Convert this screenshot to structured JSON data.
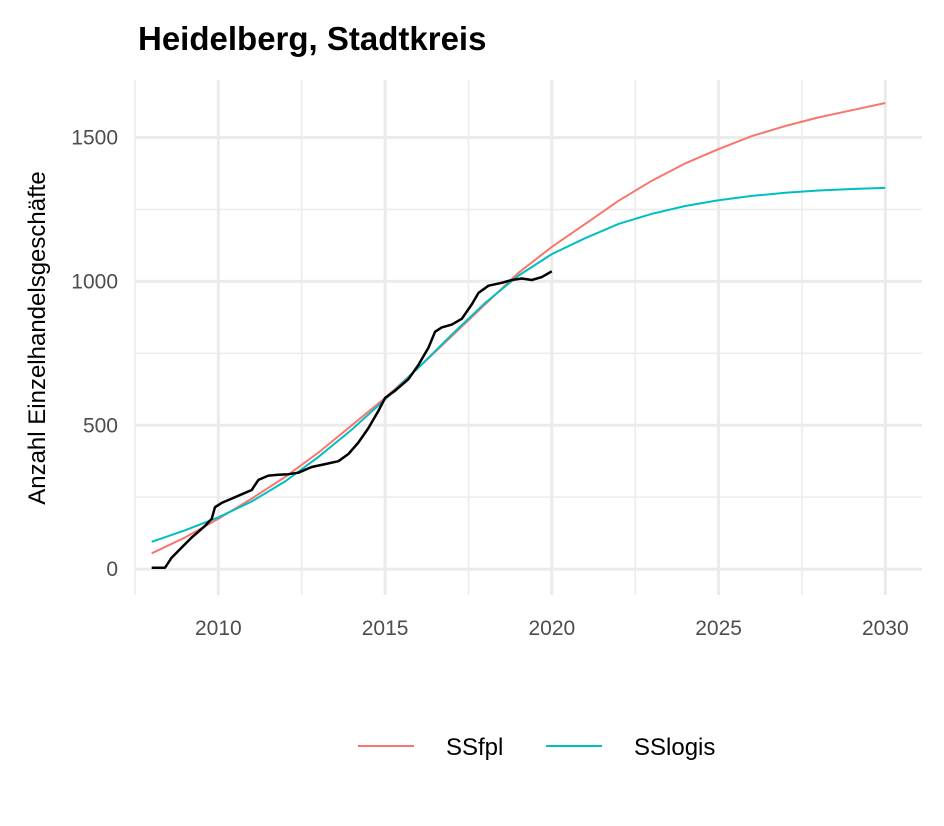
{
  "chart_data": {
    "type": "line",
    "title": "Heidelberg, Stadtkreis",
    "xlabel": "",
    "ylabel": "Anzahl Einzelhandelsgeschäfte",
    "xlim": [
      2007.5,
      2031.1
    ],
    "ylim": [
      -90,
      1700
    ],
    "xticks": [
      2010,
      2015,
      2020,
      2025,
      2030
    ],
    "yticks": [
      0,
      500,
      1000,
      1500
    ],
    "x_tick_labels": [
      "2010",
      "2015",
      "2020",
      "2025",
      "2030"
    ],
    "y_tick_labels": [
      "0",
      "500",
      "1000",
      "1500"
    ],
    "grid": true,
    "legend_position": "bottom",
    "observed": {
      "color": "#000000",
      "points": [
        [
          2008.0,
          5
        ],
        [
          2008.4,
          5
        ],
        [
          2008.6,
          40
        ],
        [
          2008.9,
          75
        ],
        [
          2009.2,
          110
        ],
        [
          2009.4,
          130
        ],
        [
          2009.6,
          150
        ],
        [
          2009.8,
          175
        ],
        [
          2009.9,
          215
        ],
        [
          2010.1,
          230
        ],
        [
          2010.4,
          245
        ],
        [
          2010.7,
          260
        ],
        [
          2011.0,
          275
        ],
        [
          2011.2,
          310
        ],
        [
          2011.5,
          325
        ],
        [
          2011.8,
          328
        ],
        [
          2012.1,
          330
        ],
        [
          2012.4,
          335
        ],
        [
          2012.6,
          345
        ],
        [
          2012.8,
          355
        ],
        [
          2013.2,
          365
        ],
        [
          2013.6,
          375
        ],
        [
          2013.9,
          400
        ],
        [
          2014.2,
          440
        ],
        [
          2014.5,
          490
        ],
        [
          2014.8,
          550
        ],
        [
          2015.0,
          595
        ],
        [
          2015.3,
          620
        ],
        [
          2015.7,
          660
        ],
        [
          2016.0,
          710
        ],
        [
          2016.3,
          770
        ],
        [
          2016.5,
          825
        ],
        [
          2016.7,
          840
        ],
        [
          2017.0,
          850
        ],
        [
          2017.3,
          870
        ],
        [
          2017.6,
          920
        ],
        [
          2017.8,
          960
        ],
        [
          2018.1,
          985
        ],
        [
          2018.5,
          995
        ],
        [
          2018.8,
          1005
        ],
        [
          2019.1,
          1010
        ],
        [
          2019.4,
          1005
        ],
        [
          2019.7,
          1015
        ],
        [
          2020.0,
          1035
        ]
      ]
    },
    "series": [
      {
        "name": "SSfpl",
        "color": "#f8766d",
        "x": [
          2008,
          2009,
          2010,
          2011,
          2012,
          2013,
          2014,
          2015,
          2016,
          2017,
          2018,
          2019,
          2020,
          2021,
          2022,
          2023,
          2024,
          2025,
          2026,
          2027,
          2028,
          2029,
          2030
        ],
        "values": [
          55,
          110,
          175,
          245,
          320,
          405,
          500,
          595,
          700,
          810,
          920,
          1030,
          1120,
          1200,
          1280,
          1350,
          1410,
          1460,
          1505,
          1540,
          1570,
          1595,
          1620
        ]
      },
      {
        "name": "SSlogis",
        "color": "#00bfc4",
        "x": [
          2008,
          2009,
          2010,
          2011,
          2012,
          2013,
          2014,
          2015,
          2016,
          2017,
          2018,
          2019,
          2020,
          2021,
          2022,
          2023,
          2024,
          2025,
          2026,
          2027,
          2028,
          2029,
          2030
        ],
        "values": [
          95,
          135,
          180,
          235,
          305,
          390,
          485,
          590,
          700,
          815,
          925,
          1020,
          1095,
          1150,
          1200,
          1235,
          1262,
          1282,
          1297,
          1308,
          1316,
          1321,
          1325
        ]
      }
    ]
  }
}
